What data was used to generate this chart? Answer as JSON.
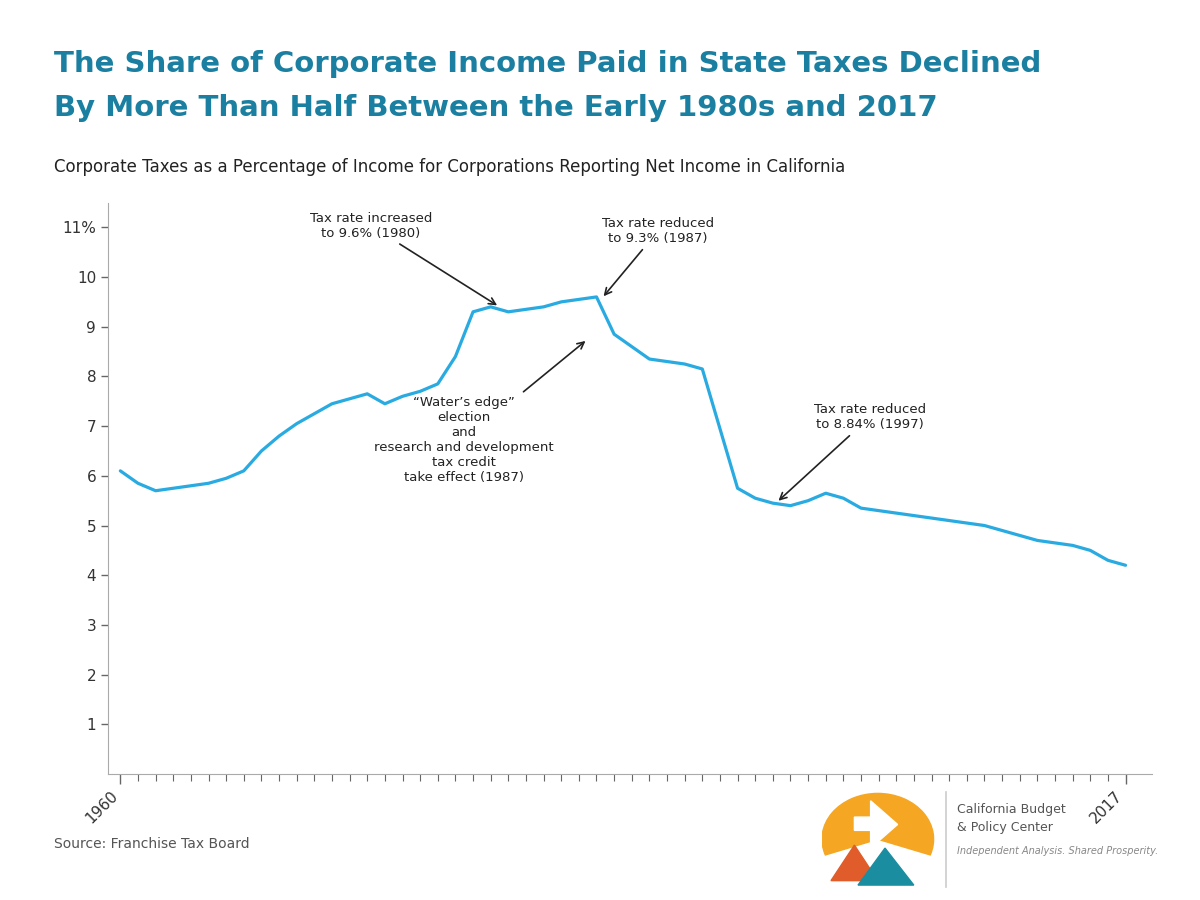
{
  "title_line1": "The Share of Corporate Income Paid in State Taxes Declined",
  "title_line2": "By More Than Half Between the Early 1980s and 2017",
  "subtitle": "Corporate Taxes as a Percentage of Income for Corporations Reporting Net Income in California",
  "source": "Source: Franchise Tax Board",
  "title_color": "#1a7fa0",
  "subtitle_color": "#222222",
  "line_color": "#29abe2",
  "separator_color": "#c8960c",
  "background_color": "#ffffff",
  "years": [
    1960,
    1961,
    1962,
    1963,
    1964,
    1965,
    1966,
    1967,
    1968,
    1969,
    1970,
    1971,
    1972,
    1973,
    1974,
    1975,
    1976,
    1977,
    1978,
    1979,
    1980,
    1981,
    1982,
    1983,
    1984,
    1985,
    1986,
    1987,
    1988,
    1989,
    1990,
    1991,
    1992,
    1993,
    1994,
    1995,
    1996,
    1997,
    1998,
    1999,
    2000,
    2001,
    2002,
    2003,
    2004,
    2005,
    2006,
    2007,
    2008,
    2009,
    2010,
    2011,
    2012,
    2013,
    2014,
    2015,
    2016,
    2017
  ],
  "values": [
    6.1,
    5.85,
    5.7,
    5.75,
    5.8,
    5.85,
    5.95,
    6.1,
    6.5,
    6.8,
    7.05,
    7.25,
    7.45,
    7.55,
    7.65,
    7.45,
    7.6,
    7.7,
    7.85,
    8.4,
    9.3,
    9.4,
    9.3,
    9.35,
    9.4,
    9.5,
    9.55,
    9.6,
    8.85,
    8.6,
    8.35,
    8.3,
    8.25,
    8.15,
    6.95,
    5.75,
    5.55,
    5.45,
    5.4,
    5.5,
    5.65,
    5.55,
    5.35,
    5.3,
    5.25,
    5.2,
    5.15,
    5.1,
    5.05,
    5.0,
    4.9,
    4.8,
    4.7,
    4.65,
    4.6,
    4.5,
    4.3,
    4.2
  ],
  "ylim": [
    0,
    11.5
  ],
  "yticks": [
    1,
    2,
    3,
    4,
    5,
    6,
    7,
    8,
    9,
    10,
    11
  ],
  "ytick_labels": [
    "1",
    "2",
    "3",
    "4",
    "5",
    "6",
    "7",
    "8",
    "9",
    "10",
    "11%"
  ],
  "cbpc_logo_colors": {
    "yellow": "#f5a623",
    "orange": "#e05c2a",
    "teal": "#1a8ea0"
  }
}
